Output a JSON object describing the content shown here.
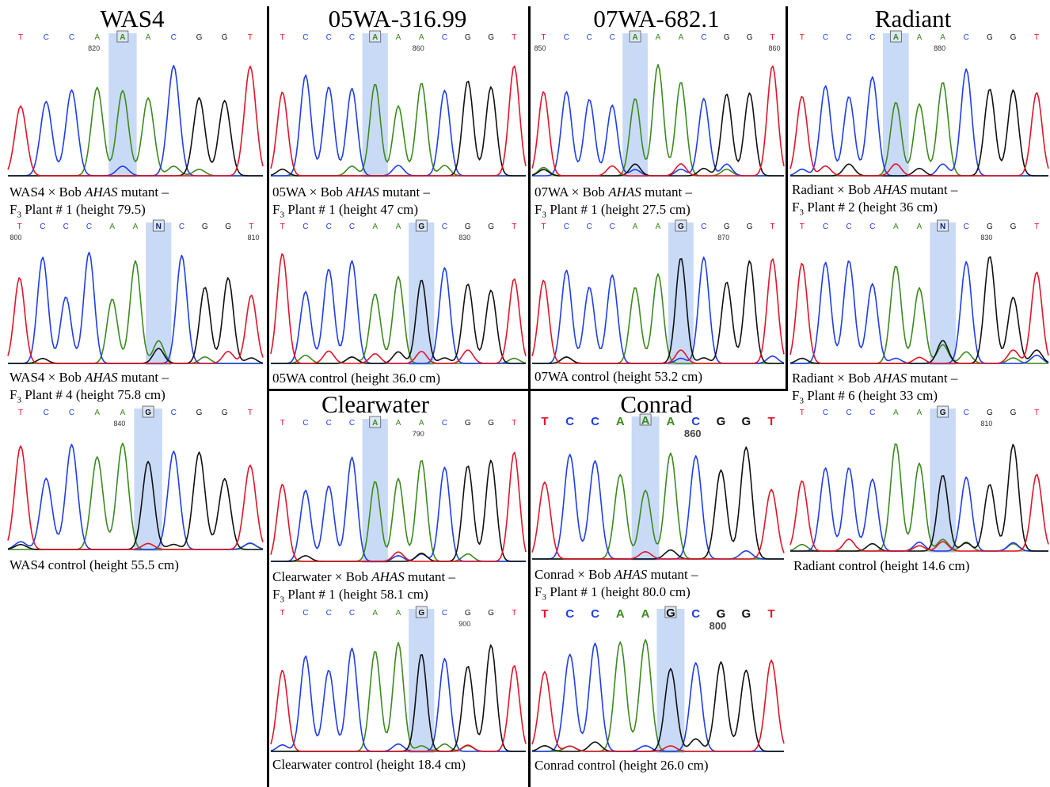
{
  "colors": {
    "A": "#3c8a1e",
    "C": "#1f3ee8",
    "G": "#111111",
    "T": "#e0152b",
    "N": "#0a1f7a",
    "highlight": "#c9daf6"
  },
  "titles": [
    "WAS4",
    "05WA-316.99",
    "07WA-682.1",
    "Radiant",
    "Clearwater",
    "Conrad"
  ],
  "panels": [
    {
      "id": "was4-mut1",
      "seq": [
        "T",
        "C",
        "C",
        "A",
        "A",
        "A",
        "C",
        "G",
        "G",
        "T"
      ],
      "hl_base": "A",
      "positions": [
        {
          "label": "820"
        }
      ],
      "peaks": [
        "T",
        "C",
        "C",
        "A",
        "A",
        "A",
        "C",
        "G",
        "G",
        "T"
      ],
      "caption1": "WAS4 × Bob ",
      "caption_italic": "AHAS",
      "caption2": " mutant –",
      "caption_line2": "Plant # 1 (height 79.5)",
      "f": "F",
      "sub": "3"
    },
    {
      "id": "was4-mut4",
      "seq": [
        "T",
        "C",
        "C",
        "C",
        "A",
        "A",
        "N",
        "C",
        "G",
        "G",
        "T"
      ],
      "hl_base": "N",
      "positions": [
        {
          "label": "800"
        },
        {
          "label": "810"
        }
      ],
      "caption1": "WAS4 × Bob ",
      "caption_italic": "AHAS",
      "caption2": " mutant –",
      "caption_line2": "Plant # 4 (height 75.8 cm)",
      "f": "F",
      "sub": "3"
    },
    {
      "id": "was4-ctrl",
      "seq": [
        "T",
        "C",
        "C",
        "A",
        "A",
        "G",
        "C",
        "G",
        "G",
        "T"
      ],
      "hl_base": "G",
      "positions": [
        {
          "label": "840"
        }
      ],
      "caption": "WAS4 control (height 55.5 cm)"
    },
    {
      "id": "05wa-mut1",
      "seq": [
        "T",
        "C",
        "C",
        "C",
        "A",
        "A",
        "A",
        "C",
        "G",
        "G",
        "T"
      ],
      "hl_base": "A",
      "positions": [
        {
          "label": "860"
        }
      ],
      "caption1": "05WA × Bob ",
      "caption_italic": "AHAS",
      "caption2": " mutant –",
      "caption_line2": "Plant # 1 (height 47 cm)",
      "f": "F",
      "sub": "3"
    },
    {
      "id": "05wa-ctrl",
      "seq": [
        "T",
        "C",
        "C",
        "C",
        "A",
        "A",
        "G",
        "C",
        "G",
        "G",
        "T"
      ],
      "hl_base": "G",
      "positions": [
        {
          "label": "830"
        }
      ],
      "caption": "05WA control (height 36.0 cm)"
    },
    {
      "id": "07wa-mut1",
      "seq": [
        "T",
        "C",
        "C",
        "C",
        "A",
        "A",
        "A",
        "C",
        "G",
        "G",
        "T"
      ],
      "hl_base": "A",
      "positions": [
        {
          "label": "850"
        },
        {
          "label": "860"
        }
      ],
      "caption1": "07WA × Bob ",
      "caption_italic": "AHAS",
      "caption2": " mutant –",
      "caption_line2": "Plant # 1 (height 27.5 cm)",
      "f": "F",
      "sub": "3"
    },
    {
      "id": "07wa-ctrl",
      "seq": [
        "T",
        "C",
        "C",
        "C",
        "A",
        "A",
        "G",
        "C",
        "G",
        "G",
        "T"
      ],
      "hl_base": "G",
      "positions": [
        {
          "label": "870"
        }
      ],
      "caption": "07WA control (height 53.2 cm)"
    },
    {
      "id": "radiant-mut2",
      "seq": [
        "T",
        "C",
        "C",
        "C",
        "A",
        "A",
        "A",
        "C",
        "G",
        "G",
        "T"
      ],
      "hl_base": "A",
      "positions": [
        {
          "label": "880"
        }
      ],
      "caption1": "Radiant × Bob ",
      "caption_italic": "AHAS",
      "caption2": " mutant –",
      "caption_line2": "Plant # 2 (height 36 cm)",
      "f": "F",
      "sub": "3"
    },
    {
      "id": "radiant-mut6",
      "seq": [
        "T",
        "C",
        "C",
        "C",
        "A",
        "A",
        "N",
        "C",
        "G",
        "G",
        "T"
      ],
      "hl_base": "N",
      "positions": [
        {
          "label": "830"
        }
      ],
      "caption1": "Radiant × Bob ",
      "caption_italic": "AHAS",
      "caption2": " mutant –",
      "caption_line2": "Plant # 6 (height 33 cm)",
      "f": "F",
      "sub": "3"
    },
    {
      "id": "radiant-ctrl",
      "seq": [
        "T",
        "C",
        "C",
        "C",
        "A",
        "A",
        "G",
        "C",
        "G",
        "G",
        "T"
      ],
      "hl_base": "G",
      "positions": [
        {
          "label": "810"
        }
      ],
      "caption": "Radiant control (height 14.6 cm)"
    },
    {
      "id": "clearwater-mut1",
      "seq": [
        "T",
        "C",
        "C",
        "C",
        "A",
        "A",
        "A",
        "C",
        "G",
        "G",
        "T"
      ],
      "hl_base": "A",
      "positions": [
        {
          "label": "790"
        }
      ],
      "caption1": "Clearwater × Bob ",
      "caption_italic": "AHAS",
      "caption2": " mutant –",
      "caption_line2": "Plant # 1 (height 58.1 cm)",
      "f": "F",
      "sub": "3"
    },
    {
      "id": "clearwater-ctrl",
      "seq": [
        "T",
        "C",
        "C",
        "C",
        "A",
        "A",
        "G",
        "C",
        "G",
        "G",
        "T"
      ],
      "hl_base": "G",
      "positions": [
        {
          "label": "900"
        }
      ],
      "caption": "Clearwater control (height 18.4 cm)"
    },
    {
      "id": "conrad-mut1",
      "seq": [
        "T",
        "C",
        "C",
        "A",
        "A",
        "A",
        "C",
        "G",
        "G",
        "T"
      ],
      "hl_base": "A",
      "positions": [
        {
          "label": "860"
        }
      ],
      "caption1": "Conrad × Bob ",
      "caption_italic": "AHAS",
      "caption2": " mutant –",
      "caption_line2": "Plant # 1 (height 80.0 cm)",
      "f": "F",
      "sub": "3"
    },
    {
      "id": "conrad-ctrl",
      "seq": [
        "T",
        "C",
        "C",
        "A",
        "A",
        "G",
        "C",
        "G",
        "G",
        "T"
      ],
      "hl_base": "G",
      "positions": [
        {
          "label": "800"
        }
      ],
      "caption": "Conrad control (height 26.0 cm)"
    }
  ]
}
